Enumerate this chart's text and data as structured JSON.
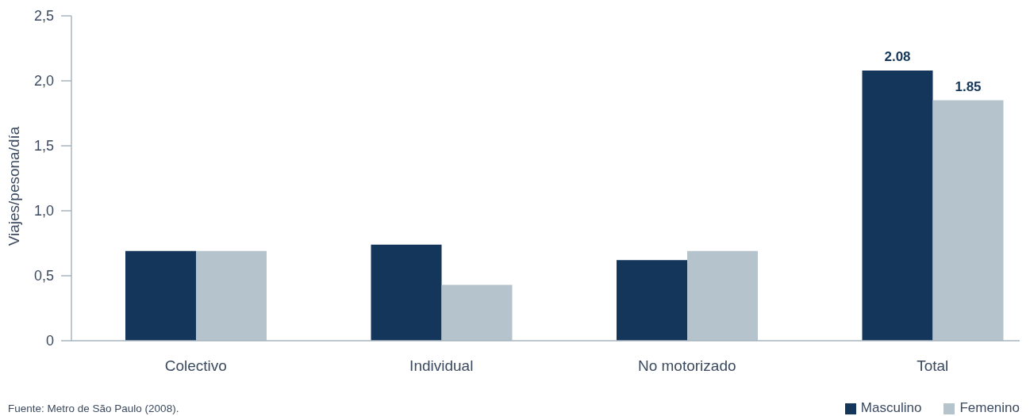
{
  "chart_data": {
    "type": "bar",
    "ylabel": "Viajes/pesona/día",
    "categories": [
      "Colectivo",
      "Individual",
      "No motorizado",
      "Total"
    ],
    "series": [
      {
        "name": "Masculino",
        "color": "#14365a",
        "values": [
          0.69,
          0.74,
          0.62,
          2.08
        ],
        "value_labels": [
          null,
          null,
          null,
          "2.08"
        ]
      },
      {
        "name": "Femenino",
        "color": "#b5c3cc",
        "values": [
          0.69,
          0.43,
          0.69,
          1.85
        ],
        "value_labels": [
          null,
          null,
          null,
          "1.85"
        ]
      }
    ],
    "ylim": [
      0,
      2.5
    ],
    "yticks": [
      0,
      {
        "value": 0.5,
        "label": "0,5"
      },
      {
        "value": 1,
        "label": "1,0"
      },
      {
        "value": 1.5,
        "label": "1,5"
      },
      {
        "value": 2,
        "label": "2,0"
      },
      {
        "value": 2.5,
        "label": "2,5"
      }
    ],
    "legend": "bottom right",
    "annotations": [
      "Fuente: Metro de São Paulo (2008)."
    ]
  }
}
